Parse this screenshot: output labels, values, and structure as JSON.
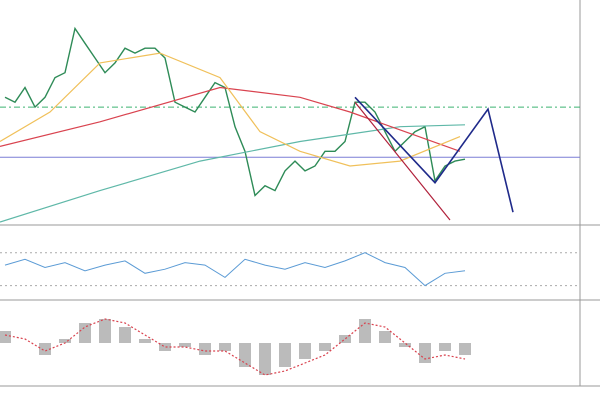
{
  "chart_data": [
    {
      "type": "line",
      "ylim": [
        0,
        222
      ],
      "xlim": [
        0,
        58
      ],
      "hlines": [
        {
          "value": 117,
          "color": "#3cb371",
          "dash": "6 3 2 3"
        },
        {
          "value": 66,
          "color": "#7b7fd6",
          "dash": ""
        }
      ],
      "series": [
        {
          "color": "#2e8b57",
          "width": 1.4,
          "x": [
            0.5,
            1.5,
            2.5,
            3.5,
            4.5,
            5.5,
            6.5,
            7.5,
            8.5,
            9.5,
            10.5,
            11.5,
            12.5,
            13.5,
            14.5,
            15.5,
            16.5,
            17.5,
            18.5,
            19.5,
            20.5,
            21.5,
            22.5,
            23.5,
            24.5,
            25.5,
            26.5,
            27.5,
            28.5,
            29.5,
            30.5,
            31.5,
            32.5,
            33.5,
            34.5,
            35.5,
            36.5,
            37.5,
            38.5,
            39.5,
            40.5,
            41.5,
            42.5,
            43.5,
            44.5,
            45.5,
            46.5
          ],
          "values": [
            127,
            122,
            137,
            117,
            127,
            147,
            152,
            197,
            182,
            167,
            152,
            162,
            177,
            172,
            177,
            177,
            167,
            122,
            117,
            112,
            127,
            142,
            137,
            97,
            72,
            27,
            37,
            32,
            52,
            62,
            52,
            57,
            72,
            72,
            82,
            122,
            122,
            112,
            92,
            72,
            82,
            92,
            97,
            42,
            57,
            62,
            64
          ]
        },
        {
          "color": "#5fb8a8",
          "width": 1.2,
          "x": [
            0,
            10,
            20,
            30,
            40,
            46.5
          ],
          "values": [
            0,
            32,
            62,
            82,
            97,
            99
          ]
        },
        {
          "color": "#d9434f",
          "width": 1.2,
          "x": [
            0,
            10,
            22,
            30,
            35,
            46
          ],
          "values": [
            77,
            102,
            137,
            127,
            112,
            72
          ]
        },
        {
          "color": "#f0c05a",
          "width": 1.2,
          "x": [
            0,
            5,
            10,
            16,
            22,
            26,
            30,
            35,
            40,
            46
          ],
          "values": [
            82,
            112,
            162,
            172,
            147,
            92,
            72,
            57,
            62,
            87
          ]
        },
        {
          "color": "#1f2a8a",
          "width": 1.6,
          "x": [
            35.5,
            43.5,
            48.8,
            51.3
          ],
          "values": [
            127,
            40,
            115,
            10
          ]
        },
        {
          "color": "#b0203a",
          "width": 1.2,
          "x": [
            35.5,
            45
          ],
          "values": [
            122,
            2
          ]
        }
      ]
    },
    {
      "type": "line",
      "ylim": [
        15,
        100
      ],
      "hlines": [
        {
          "value": 70,
          "color": "#aaa",
          "dash": "2 3"
        },
        {
          "value": 30,
          "color": "#aaa",
          "dash": "2 3"
        }
      ],
      "series": [
        {
          "color": "#5b9bd5",
          "width": 1,
          "x": [
            0.5,
            2.5,
            4.5,
            6.5,
            8.5,
            10.5,
            12.5,
            14.5,
            16.5,
            18.5,
            20.5,
            22.5,
            24.5,
            26.5,
            28.5,
            30.5,
            32.5,
            34.5,
            36.5,
            38.5,
            40.5,
            42.5,
            44.5,
            46.5
          ],
          "values": [
            55,
            62,
            52,
            58,
            48,
            55,
            60,
            45,
            50,
            58,
            55,
            40,
            62,
            55,
            50,
            58,
            52,
            60,
            70,
            58,
            52,
            30,
            45,
            48
          ]
        }
      ]
    },
    {
      "type": "bar",
      "ylim": [
        -1,
        1
      ],
      "series": [
        {
          "color": "#bbbbbb",
          "style": "bar",
          "x": [
            0.5,
            2.5,
            4.5,
            6.5,
            8.5,
            10.5,
            12.5,
            14.5,
            16.5,
            18.5,
            20.5,
            22.5,
            24.5,
            26.5,
            28.5,
            30.5,
            32.5,
            34.5,
            36.5,
            38.5,
            40.5,
            42.5,
            44.5,
            46.5
          ],
          "values": [
            0.3,
            0,
            -0.3,
            0.1,
            0.5,
            0.6,
            0.4,
            0.1,
            -0.2,
            -0.1,
            -0.3,
            -0.2,
            -0.6,
            -0.8,
            -0.6,
            -0.4,
            -0.2,
            0.2,
            0.6,
            0.3,
            -0.1,
            -0.5,
            -0.2,
            -0.3
          ]
        },
        {
          "color": "#d9434f",
          "style": "dotted",
          "width": 1.2,
          "x": [
            0.5,
            2.5,
            4.5,
            6.5,
            8.5,
            10.5,
            12.5,
            14.5,
            16.5,
            18.5,
            20.5,
            22.5,
            24.5,
            26.5,
            28.5,
            30.5,
            32.5,
            34.5,
            36.5,
            38.5,
            40.5,
            42.5,
            44.5,
            46.5
          ],
          "values": [
            0.2,
            0.1,
            -0.2,
            0,
            0.4,
            0.6,
            0.5,
            0.2,
            -0.1,
            -0.1,
            -0.2,
            -0.2,
            -0.5,
            -0.8,
            -0.7,
            -0.5,
            -0.3,
            0.1,
            0.5,
            0.4,
            0,
            -0.4,
            -0.3,
            -0.4
          ]
        }
      ]
    }
  ]
}
